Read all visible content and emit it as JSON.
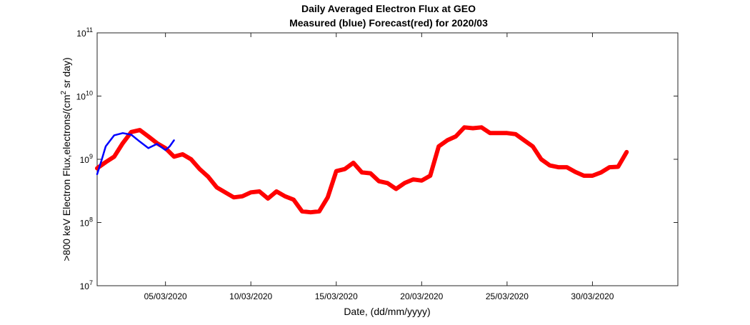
{
  "chart_data": {
    "type": "line",
    "title_line1": "Daily Averaged Electron Flux at GEO",
    "title_line2": "Measured (blue) Forecast(red) for 2020/03",
    "xlabel": "Date, (dd/mm/yyyy)",
    "ylabel_main": ">800 keV Electron Flux,electrons/(cm",
    "ylabel_sup": "2",
    "ylabel_tail": " sr day)",
    "y_scale": "log",
    "ylim": [
      10000000,
      100000000000
    ],
    "xlim": [
      "01/03/2020",
      "04/04/2020"
    ],
    "x_ticks": [
      "05/03/2020",
      "10/03/2020",
      "15/03/2020",
      "20/03/2020",
      "25/03/2020",
      "30/03/2020"
    ],
    "y_ticks": [
      {
        "base": "10",
        "exp": "7",
        "value": 10000000
      },
      {
        "base": "10",
        "exp": "8",
        "value": 100000000
      },
      {
        "base": "10",
        "exp": "9",
        "value": 1000000000
      },
      {
        "base": "10",
        "exp": "10",
        "value": 10000000000
      },
      {
        "base": "10",
        "exp": "11",
        "value": 100000000000
      }
    ],
    "grid": false,
    "series": [
      {
        "name": "Measured",
        "color": "#0000ff",
        "x": [
          "01/03/2020",
          "01/03/2020 06:00",
          "01/03/2020 12:00",
          "02/03/2020",
          "02/03/2020 12:00",
          "03/03/2020",
          "03/03/2020 12:00",
          "04/03/2020",
          "04/03/2020 12:00",
          "05/03/2020",
          "05/03/2020 06:00",
          "05/03/2020 12:00"
        ],
        "values": [
          580000000.0,
          950000000.0,
          1600000000.0,
          2400000000.0,
          2600000000.0,
          2450000000.0,
          1900000000.0,
          1500000000.0,
          1750000000.0,
          1400000000.0,
          1600000000.0,
          2000000000.0
        ]
      },
      {
        "name": "Forecast",
        "color": "#ff0000",
        "x": [
          "01/03/2020",
          "01/03/2020 12:00",
          "02/03/2020",
          "02/03/2020 12:00",
          "03/03/2020",
          "03/03/2020 12:00",
          "04/03/2020",
          "04/03/2020 12:00",
          "05/03/2020",
          "05/03/2020 12:00",
          "06/03/2020",
          "06/03/2020 12:00",
          "07/03/2020",
          "07/03/2020 12:00",
          "08/03/2020",
          "08/03/2020 12:00",
          "09/03/2020",
          "09/03/2020 12:00",
          "10/03/2020",
          "10/03/2020 12:00",
          "11/03/2020",
          "11/03/2020 12:00",
          "12/03/2020",
          "12/03/2020 12:00",
          "13/03/2020",
          "13/03/2020 12:00",
          "14/03/2020",
          "14/03/2020 12:00",
          "15/03/2020",
          "15/03/2020 12:00",
          "16/03/2020",
          "16/03/2020 12:00",
          "17/03/2020",
          "17/03/2020 12:00",
          "18/03/2020",
          "18/03/2020 12:00",
          "19/03/2020",
          "19/03/2020 12:00",
          "20/03/2020",
          "20/03/2020 12:00",
          "21/03/2020",
          "21/03/2020 12:00",
          "22/03/2020",
          "22/03/2020 12:00",
          "23/03/2020",
          "23/03/2020 12:00",
          "24/03/2020",
          "24/03/2020 12:00",
          "25/03/2020",
          "25/03/2020 12:00",
          "26/03/2020",
          "26/03/2020 12:00",
          "27/03/2020",
          "27/03/2020 12:00",
          "28/03/2020",
          "28/03/2020 12:00",
          "29/03/2020",
          "29/03/2020 12:00",
          "30/03/2020",
          "30/03/2020 12:00",
          "31/03/2020",
          "31/03/2020 12:00",
          "01/04/2020"
        ],
        "values": [
          720000000.0,
          900000000.0,
          1100000000.0,
          1800000000.0,
          2700000000.0,
          2900000000.0,
          2300000000.0,
          1800000000.0,
          1500000000.0,
          1100000000.0,
          1200000000.0,
          1000000000.0,
          700000000.0,
          530000000.0,
          360000000.0,
          300000000.0,
          250000000.0,
          260000000.0,
          300000000.0,
          310000000.0,
          240000000.0,
          310000000.0,
          260000000.0,
          230000000.0,
          150000000.0,
          145000000.0,
          150000000.0,
          250000000.0,
          650000000.0,
          700000000.0,
          880000000.0,
          620000000.0,
          600000000.0,
          450000000.0,
          420000000.0,
          340000000.0,
          420000000.0,
          480000000.0,
          460000000.0,
          550000000.0,
          1600000000.0,
          2000000000.0,
          2300000000.0,
          3200000000.0,
          3100000000.0,
          3200000000.0,
          2600000000.0,
          2600000000.0,
          2600000000.0,
          2500000000.0,
          2000000000.0,
          1600000000.0,
          1000000000.0,
          800000000.0,
          750000000.0,
          750000000.0,
          630000000.0,
          550000000.0,
          550000000.0,
          620000000.0,
          750000000.0,
          760000000.0,
          1300000000.0
        ]
      }
    ]
  }
}
